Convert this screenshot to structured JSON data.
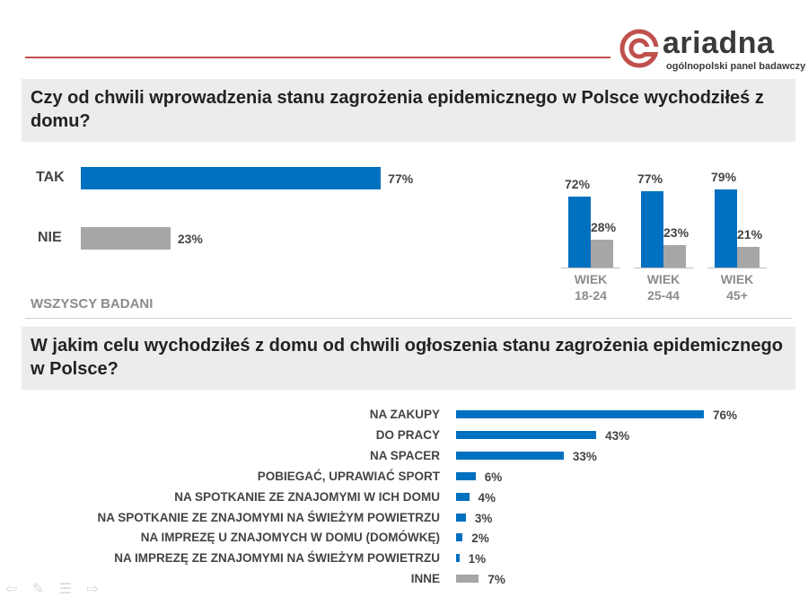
{
  "logo": {
    "word": "ariadna",
    "subtitle": "ogólnopolski panel badawczy",
    "brand_color": "#c0504d"
  },
  "question1": "Czy od chwili wprowadzenia stanu zagrożenia epidemicznego w Polsce wychodziłeś z domu?",
  "question2": "W jakim celu wychodziłeś z domu od chwili ogłoszenia stanu zagrożenia epidemicznego w Polsce?",
  "colors": {
    "primary": "#0070c0",
    "secondary": "#a6a6a6"
  },
  "chart_data": [
    {
      "type": "bar",
      "orientation": "horizontal",
      "categories": [
        "TAK",
        "NIE"
      ],
      "values": [
        77,
        23
      ],
      "value_labels": [
        "77%",
        "23%"
      ],
      "xlim": [
        0,
        100
      ],
      "note": "WSZYSCY BADANI"
    },
    {
      "type": "bar",
      "orientation": "vertical",
      "categories": [
        "WIEK 18-24",
        "WIEK 25-44",
        "WIEK 45+"
      ],
      "series": [
        {
          "values": [
            72,
            77,
            79
          ],
          "labels": [
            "72%",
            "77%",
            "79%"
          ]
        },
        {
          "values": [
            28,
            23,
            21
          ],
          "labels": [
            "28%",
            "23%",
            "21%"
          ]
        }
      ],
      "ylim": [
        0,
        100
      ]
    },
    {
      "type": "bar",
      "orientation": "horizontal",
      "categories": [
        "NA ZAKUPY",
        "DO PRACY",
        "NA SPACER",
        "POBIEGAĆ, UPRAWIAĆ SPORT",
        "NA SPOTKANIE ZE ZNAJOMYMI W ICH DOMU",
        "NA SPOTKANIE ZE ZNAJOMYMI NA ŚWIEŻYM POWIETRZU",
        "NA IMPREZĘ U ZNAJOMYCH W DOMU (DOMÓWKĘ)",
        "NA IMPREZĘ ZE ZNAJOMYMI NA ŚWIEŻYM POWIETRZU",
        "INNE"
      ],
      "values": [
        76,
        43,
        33,
        6,
        4,
        3,
        2,
        1,
        7
      ],
      "value_labels": [
        "76%",
        "43%",
        "33%",
        "6%",
        "4%",
        "3%",
        "2%",
        "1%",
        "7%"
      ],
      "bar_colors": [
        "#0070c0",
        "#0070c0",
        "#0070c0",
        "#0070c0",
        "#0070c0",
        "#0070c0",
        "#0070c0",
        "#0070c0",
        "#a6a6a6"
      ],
      "xlim": [
        0,
        100
      ]
    }
  ]
}
